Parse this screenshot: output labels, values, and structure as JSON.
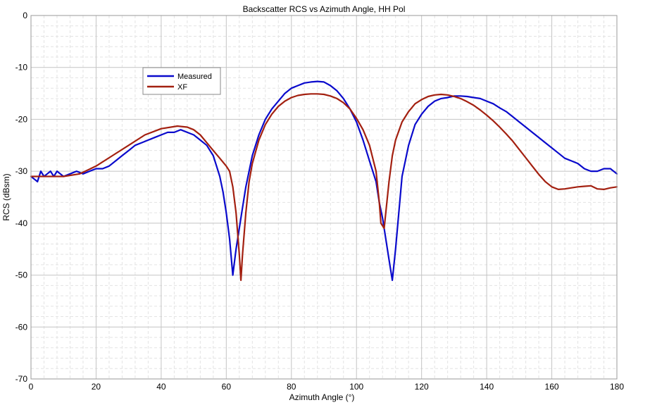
{
  "chart_data": {
    "type": "line",
    "title": "Backscatter RCS vs Azimuth Angle, HH Pol",
    "xlabel": "Azimuth Angle (°)",
    "ylabel": "RCS (dBsm)",
    "xlim": [
      0,
      180
    ],
    "ylim": [
      -70,
      0
    ],
    "xticks": [
      0,
      20,
      40,
      60,
      80,
      100,
      120,
      140,
      160,
      180
    ],
    "yticks": [
      0,
      -10,
      -20,
      -30,
      -40,
      -50,
      -60,
      -70
    ],
    "grid": true,
    "legend_position": "upper-left",
    "series": [
      {
        "name": "Measured",
        "color": "#0a0acc",
        "x": [
          0,
          1,
          2,
          3,
          4,
          5,
          6,
          7,
          8,
          9,
          10,
          12,
          14,
          16,
          18,
          20,
          22,
          24,
          26,
          28,
          30,
          32,
          34,
          36,
          38,
          40,
          42,
          44,
          46,
          48,
          50,
          52,
          54,
          56,
          57,
          58,
          59,
          60,
          61,
          62,
          63,
          64,
          65,
          66,
          67,
          68,
          70,
          72,
          74,
          76,
          78,
          80,
          82,
          84,
          86,
          88,
          90,
          92,
          94,
          96,
          98,
          100,
          102,
          104,
          106,
          107,
          108,
          109,
          110,
          111,
          112,
          113,
          114,
          116,
          118,
          120,
          122,
          124,
          126,
          128,
          130,
          132,
          134,
          136,
          138,
          140,
          142,
          144,
          146,
          148,
          150,
          152,
          154,
          156,
          158,
          160,
          162,
          164,
          166,
          168,
          170,
          172,
          174,
          176,
          178,
          180
        ],
        "y": [
          -31,
          -31.5,
          -32,
          -30,
          -31,
          -30.5,
          -30,
          -31,
          -30,
          -30.5,
          -31,
          -30.5,
          -30,
          -30.5,
          -30,
          -29.5,
          -29.5,
          -29,
          -28,
          -27,
          -26,
          -25,
          -24.5,
          -24,
          -23.5,
          -23,
          -22.5,
          -22.5,
          -22,
          -22.5,
          -23,
          -24,
          -25,
          -27,
          -29,
          -31,
          -34,
          -38,
          -43,
          -50,
          -45,
          -41,
          -37,
          -33,
          -30,
          -27,
          -23,
          -20,
          -18,
          -16.5,
          -15,
          -14,
          -13.5,
          -13,
          -12.8,
          -12.7,
          -12.8,
          -13.5,
          -14.5,
          -16,
          -18,
          -20.5,
          -24,
          -28,
          -32,
          -36,
          -39,
          -43,
          -47,
          -51,
          -45,
          -38,
          -31,
          -25,
          -21,
          -19,
          -17.5,
          -16.5,
          -16,
          -15.8,
          -15.5,
          -15.5,
          -15.6,
          -15.8,
          -16,
          -16.5,
          -17,
          -17.8,
          -18.5,
          -19.5,
          -20.5,
          -21.5,
          -22.5,
          -23.5,
          -24.5,
          -25.5,
          -26.5,
          -27.5,
          -28,
          -28.5,
          -29.5,
          -30,
          -30,
          -29.5,
          -29.5,
          -30.5
        ]
      },
      {
        "name": "XF",
        "color": "#a32010",
        "x": [
          0,
          5,
          10,
          15,
          20,
          25,
          30,
          35,
          40,
          45,
          48,
          50,
          52,
          54,
          56,
          58,
          60,
          61,
          62,
          63,
          64,
          64.5,
          65,
          66,
          67,
          68,
          70,
          72,
          74,
          76,
          78,
          80,
          82,
          84,
          86,
          88,
          90,
          92,
          94,
          96,
          98,
          100,
          102,
          104,
          106,
          107,
          107.5,
          108,
          108.5,
          109,
          110,
          111,
          112,
          114,
          116,
          118,
          120,
          122,
          124,
          126,
          128,
          130,
          132,
          134,
          136,
          138,
          140,
          142,
          144,
          146,
          148,
          150,
          152,
          154,
          156,
          158,
          160,
          162,
          164,
          166,
          168,
          170,
          172,
          174,
          176,
          178,
          180
        ],
        "y": [
          -31,
          -31,
          -31,
          -30.5,
          -29,
          -27,
          -25,
          -23,
          -21.8,
          -21.3,
          -21.5,
          -22,
          -23,
          -24.5,
          -26,
          -27.5,
          -29,
          -30,
          -33,
          -38,
          -46,
          -51,
          -46,
          -38,
          -32,
          -28.5,
          -24,
          -21,
          -19,
          -17.5,
          -16.5,
          -15.8,
          -15.4,
          -15.2,
          -15.1,
          -15.1,
          -15.2,
          -15.5,
          -16,
          -16.8,
          -18,
          -19.8,
          -22,
          -25,
          -30,
          -36,
          -40,
          -40.5,
          -41,
          -38,
          -32,
          -27,
          -24,
          -20.5,
          -18.5,
          -17,
          -16.2,
          -15.6,
          -15.3,
          -15.2,
          -15.3,
          -15.6,
          -16,
          -16.6,
          -17.3,
          -18.2,
          -19.2,
          -20.3,
          -21.5,
          -22.8,
          -24.2,
          -25.8,
          -27.4,
          -29,
          -30.6,
          -32,
          -33,
          -33.5,
          -33.4,
          -33.2,
          -33,
          -32.9,
          -32.8,
          -33.4,
          -33.5,
          -33.2,
          -33
        ]
      }
    ]
  }
}
